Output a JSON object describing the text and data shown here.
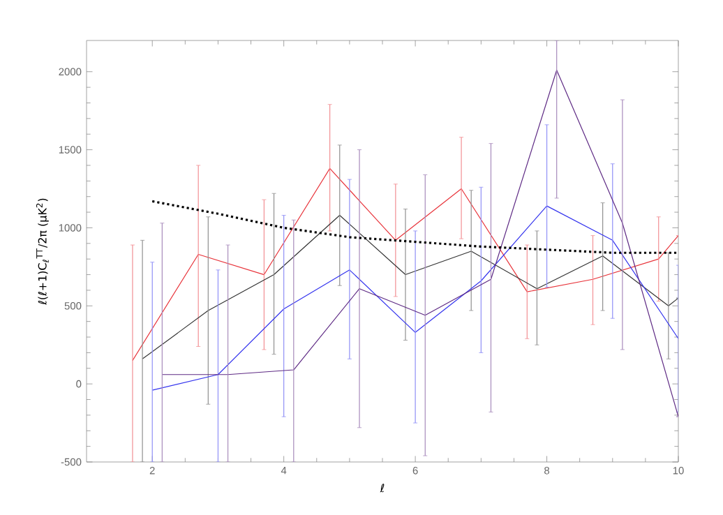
{
  "chart_data": {
    "type": "line",
    "xlabel": "ℓ",
    "ylabel": "ℓ(ℓ+1)C$_{ℓ}$$^{TT}$/2π   (μK$^{2}$)",
    "xlim": [
      1,
      10
    ],
    "ylim": [
      -500,
      2200
    ],
    "xticks": [
      2,
      4,
      6,
      8,
      10
    ],
    "yticks": [
      -500,
      0,
      500,
      1000,
      1500,
      2000
    ],
    "grid": false,
    "marker": "none",
    "series": [
      {
        "color": "#e8333a",
        "line_style": "solid",
        "x": [
          1.7,
          2.7,
          3.7,
          4.7,
          5.7,
          6.7,
          7.7,
          8.7,
          9.7,
          10
        ],
        "values": [
          150,
          830,
          700,
          1380,
          920,
          1250,
          590,
          670,
          800,
          950
        ],
        "errors": [
          [
            -500,
            890
          ],
          [
            240,
            1400
          ],
          [
            220,
            1180
          ],
          [
            980,
            1790
          ],
          [
            560,
            1280
          ],
          [
            930,
            1580
          ],
          [
            290,
            890
          ],
          [
            380,
            950
          ],
          [
            530,
            1070
          ],
          null
        ]
      },
      {
        "color": "#333333",
        "line_style": "solid",
        "x": [
          1.85,
          2.85,
          3.85,
          4.85,
          5.85,
          6.85,
          7.85,
          8.85,
          9.85,
          10
        ],
        "values": [
          160,
          470,
          700,
          1080,
          700,
          850,
          610,
          820,
          500,
          550
        ],
        "errors": [
          [
            -500,
            920
          ],
          [
            -130,
            1070
          ],
          [
            190,
            1220
          ],
          [
            630,
            1530
          ],
          [
            280,
            1120
          ],
          [
            470,
            1240
          ],
          [
            250,
            980
          ],
          [
            470,
            1160
          ],
          [
            160,
            840
          ],
          null
        ]
      },
      {
        "color": "#3333ee",
        "line_style": "solid",
        "x": [
          2,
          3,
          4,
          5,
          6,
          7,
          8,
          9,
          10
        ],
        "values": [
          -40,
          60,
          480,
          730,
          330,
          660,
          1140,
          920,
          290
        ],
        "errors": [
          [
            -500,
            780
          ],
          [
            -500,
            730
          ],
          [
            -210,
            1080
          ],
          [
            160,
            1310
          ],
          [
            -250,
            980
          ],
          [
            200,
            1260
          ],
          [
            620,
            1660
          ],
          [
            420,
            1410
          ],
          [
            -180,
            760
          ]
        ]
      },
      {
        "color": "#5e2a84",
        "line_style": "solid",
        "x": [
          2.15,
          3.15,
          4.15,
          5.15,
          6.15,
          7.15,
          8.15,
          9.15,
          10
        ],
        "values": [
          60,
          60,
          90,
          610,
          440,
          670,
          2010,
          1030,
          -210
        ],
        "errors": [
          [
            -500,
            1030
          ],
          [
            -500,
            890
          ],
          [
            -500,
            1050
          ],
          [
            -280,
            1500
          ],
          [
            -460,
            1340
          ],
          [
            -180,
            1540
          ],
          [
            1190,
            2200
          ],
          [
            220,
            1820
          ],
          null
        ]
      },
      {
        "color": "#000000",
        "line_style": "dotted",
        "x": [
          2,
          3,
          4,
          5,
          6,
          7,
          8,
          9,
          10
        ],
        "values": [
          1170,
          1090,
          1000,
          940,
          910,
          880,
          860,
          840,
          840
        ]
      }
    ]
  }
}
